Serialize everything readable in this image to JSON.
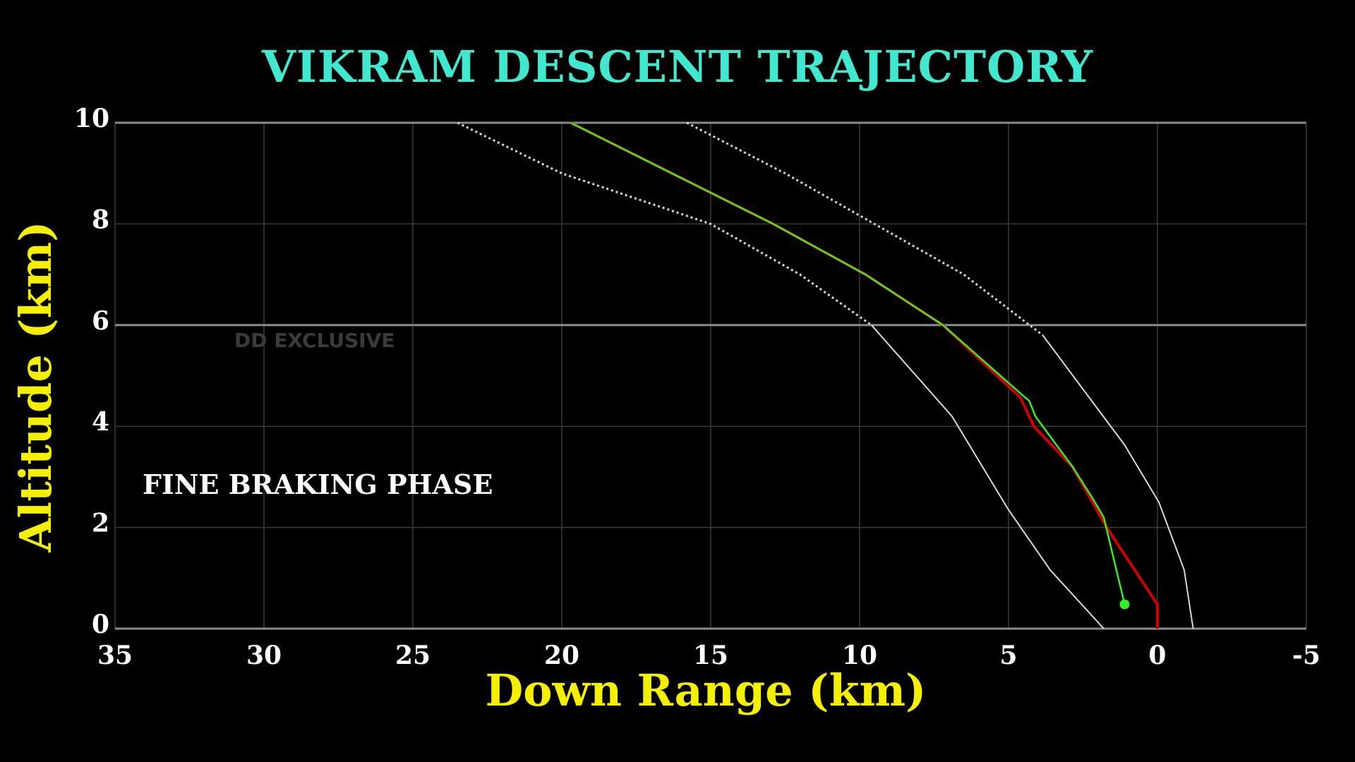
{
  "chart_data": {
    "type": "line",
    "title": "VIKRAM DESCENT TRAJECTORY",
    "xlabel": "Down Range (km)",
    "ylabel": "Altitude (km)",
    "xlim": [
      35,
      -5
    ],
    "ylim": [
      0,
      10
    ],
    "x_ticks": [
      "35",
      "30",
      "25",
      "20",
      "15",
      "10",
      "5",
      "0",
      "-5"
    ],
    "y_ticks": [
      "0",
      "2",
      "4",
      "6",
      "8",
      "10"
    ],
    "grid": true,
    "annotations": [
      "FINE BRAKING PHASE"
    ],
    "watermark": "DD EXCLUSIVE",
    "series": [
      {
        "color": "#ffffff",
        "style": "bound",
        "dotted_above_km": 6,
        "x": [
          23.5,
          20.0,
          15.0,
          12.0,
          9.6,
          6.9,
          5.0,
          3.6,
          1.8
        ],
        "y": [
          10,
          9,
          8,
          7,
          6,
          4.2,
          2.35,
          1.16,
          0
        ]
      },
      {
        "color": "#ffffff",
        "style": "bound",
        "dotted_above_km": 5.8,
        "x": [
          15.8,
          12.5,
          9.5,
          6.5,
          3.85,
          1.1,
          -0.05,
          -0.9,
          -1.2
        ],
        "y": [
          10,
          9,
          8,
          7,
          5.8,
          3.63,
          2.5,
          1.16,
          0
        ]
      },
      {
        "color": "#d00000",
        "style": "solid",
        "x": [
          19.7,
          16.3,
          12.9,
          9.8,
          7.2,
          4.6,
          4.15,
          2.85,
          1.7,
          0.0,
          0.0
        ],
        "y": [
          10,
          9,
          8,
          7,
          6,
          4.57,
          4,
          3.2,
          2,
          0.48,
          0
        ]
      },
      {
        "color": "#33ee22",
        "style": "solid",
        "end_marker": true,
        "x": [
          19.7,
          16.3,
          12.9,
          9.8,
          7.2,
          4.5,
          4.3,
          4.1,
          2.85,
          2.2,
          1.8,
          1.1
        ],
        "y": [
          10,
          9,
          8,
          7,
          6,
          4.6,
          4.5,
          4.2,
          3.2,
          2.6,
          2.2,
          0.48
        ]
      }
    ]
  }
}
